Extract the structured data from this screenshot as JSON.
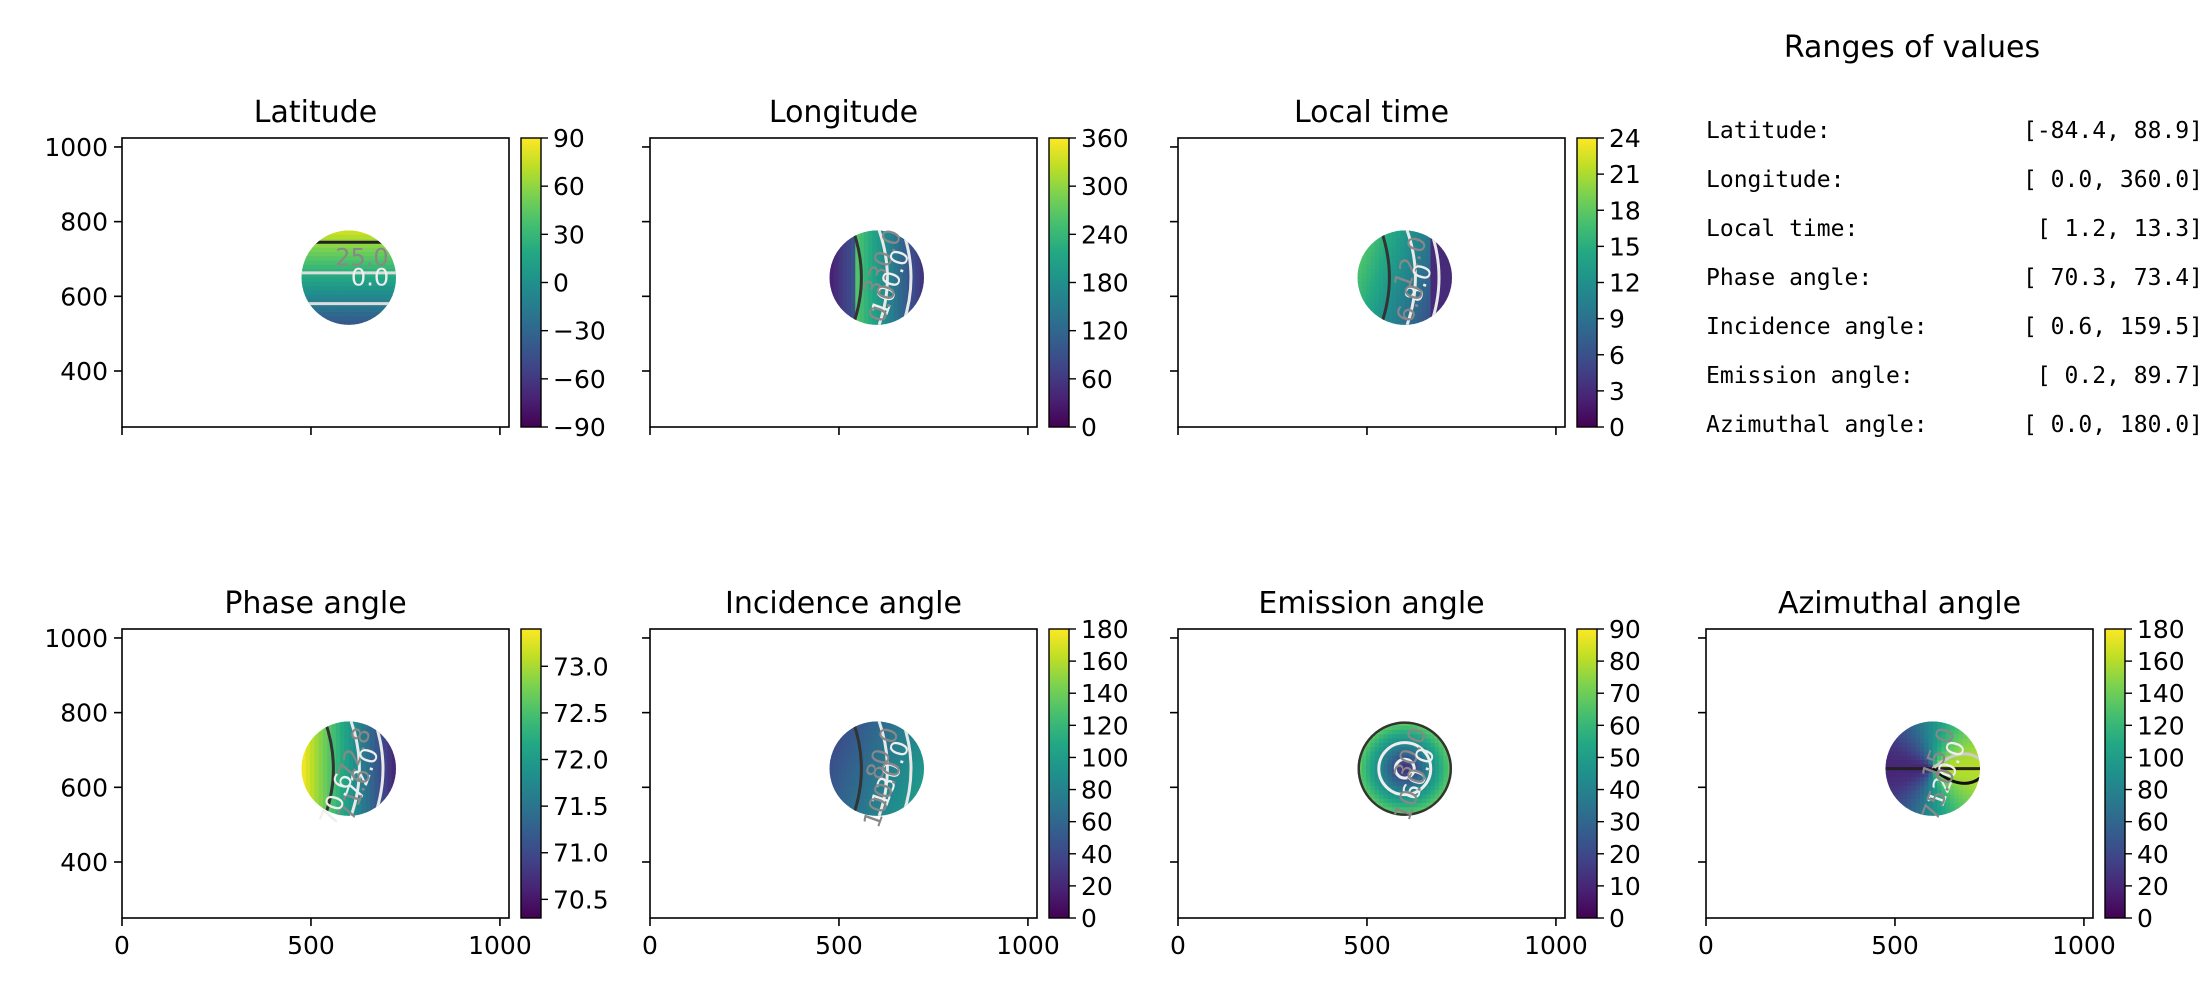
{
  "chart_data": {
    "type": "heatmap",
    "colormap": "viridis",
    "x_ticks": [
      0,
      500,
      1000
    ],
    "y_ticks": [
      400,
      600,
      800,
      1000
    ],
    "x_range": [
      0,
      1024
    ],
    "y_range": [
      250,
      1024
    ],
    "disk": {
      "center_x": 600,
      "center_y": 650,
      "radius": 125
    },
    "panels": [
      {
        "title": "Latitude",
        "field": "lat",
        "vmin": -90,
        "vmax": 90,
        "ticks": [
          "90",
          "60",
          "30",
          "0",
          "−30",
          "−60",
          "−90"
        ],
        "tick_values": [
          90,
          60,
          30,
          0,
          -30,
          -60,
          -90
        ],
        "data_min": -84.4,
        "data_max": 88.9,
        "contour_labels": [
          "25.0",
          "0.0"
        ]
      },
      {
        "title": "Longitude",
        "field": "lon",
        "vmin": 0,
        "vmax": 360,
        "ticks": [
          "360",
          "300",
          "240",
          "180",
          "120",
          "60",
          "0"
        ],
        "tick_values": [
          360,
          300,
          240,
          180,
          120,
          60,
          0
        ],
        "data_min": 0.0,
        "data_max": 360.0,
        "contour_labels": [
          "330.0",
          "100.0",
          "0.0"
        ]
      },
      {
        "title": "Local time",
        "field": "lt",
        "vmin": 0,
        "vmax": 24,
        "ticks": [
          "24",
          "21",
          "18",
          "15",
          "12",
          "9",
          "6",
          "3",
          "0"
        ],
        "tick_values": [
          24,
          21,
          18,
          15,
          12,
          9,
          6,
          3,
          0
        ],
        "data_min": 1.2,
        "data_max": 13.3,
        "contour_labels": [
          "12.0",
          "8.0",
          "6.0"
        ]
      },
      {
        "title": "Phase angle",
        "field": "phase",
        "vmin": 70.3,
        "vmax": 73.4,
        "ticks": [
          "73.0",
          "72.5",
          "72.0",
          "71.5",
          "71.0",
          "70.5"
        ],
        "tick_values": [
          73.0,
          72.5,
          72.0,
          71.5,
          71.0,
          70.5
        ],
        "data_min": 70.3,
        "data_max": 73.4,
        "contour_labels": [
          "72.8",
          "72.0",
          "71.6",
          "70.6"
        ]
      },
      {
        "title": "Incidence angle",
        "field": "inc",
        "vmin": 0,
        "vmax": 180,
        "ticks": [
          "180",
          "160",
          "140",
          "120",
          "100",
          "80",
          "60",
          "40",
          "20",
          "0"
        ],
        "tick_values": [
          180,
          160,
          140,
          120,
          100,
          80,
          60,
          40,
          20,
          0
        ],
        "data_min": 0.6,
        "data_max": 159.5,
        "contour_labels": [
          "80.0",
          "130.0",
          "100.0"
        ]
      },
      {
        "title": "Emission angle",
        "field": "emi",
        "vmin": 0,
        "vmax": 90,
        "ticks": [
          "90",
          "80",
          "70",
          "60",
          "50",
          "40",
          "30",
          "20",
          "10",
          "0"
        ],
        "tick_values": [
          90,
          80,
          70,
          60,
          50,
          40,
          30,
          20,
          10,
          0
        ],
        "data_min": 0.2,
        "data_max": 89.7,
        "contour_labels": [
          "30.0",
          "60.0",
          "10.0"
        ]
      },
      {
        "title": "Azimuthal angle",
        "field": "azi",
        "vmin": 0,
        "vmax": 180,
        "ticks": [
          "180",
          "160",
          "140",
          "120",
          "100",
          "80",
          "60",
          "40",
          "20",
          "0"
        ],
        "tick_values": [
          180,
          160,
          140,
          120,
          100,
          80,
          60,
          40,
          20,
          0
        ],
        "data_min": 0.0,
        "data_max": 180.0,
        "contour_labels": [
          "15.0",
          "120.0",
          "75.0"
        ]
      }
    ],
    "ranges_panel": {
      "title": "Ranges of values",
      "rows": [
        {
          "label": "Latitude:",
          "value": "[-84.4,  88.9]"
        },
        {
          "label": "Longitude:",
          "value": "[  0.0, 360.0]"
        },
        {
          "label": "Local time:",
          "value": "[  1.2,  13.3]"
        },
        {
          "label": "Phase angle:",
          "value": "[ 70.3,  73.4]"
        },
        {
          "label": "Incidence angle:",
          "value": "[  0.6, 159.5]"
        },
        {
          "label": "Emission angle:",
          "value": "[  0.2,  89.7]"
        },
        {
          "label": "Azimuthal angle:",
          "value": "[  0.0, 180.0]"
        }
      ]
    }
  }
}
